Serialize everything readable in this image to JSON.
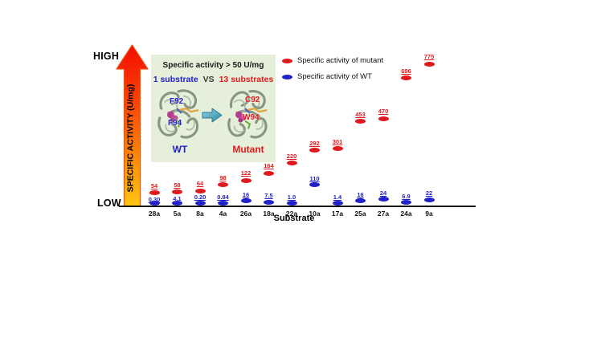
{
  "figure": {
    "y_axis": {
      "high_label": "HIGH",
      "low_label": "LOW",
      "title": "SPECIFIC ACTIVITY (U/mg)"
    },
    "x_axis": {
      "title": "Substrate"
    },
    "inset": {
      "title": "Specific activity > 50 U/mg",
      "comparison": {
        "wt_part": "1 substrate",
        "vs": "VS",
        "mutant_part": "13 substrates"
      },
      "wt": {
        "label": "WT",
        "residues": [
          "F92",
          "F94"
        ]
      },
      "mutant": {
        "label": "Mutant",
        "residues": [
          "C92",
          "W94"
        ]
      }
    },
    "legend": [
      {
        "label": "Specific activity of mutant",
        "color": "#e0191c"
      },
      {
        "label": "Specific activity of WT",
        "color": "#2121c8"
      }
    ],
    "colors": {
      "mutant": "#e0191c",
      "wt": "#2121c8",
      "inset_background": "#e6efda",
      "arrow_gradient_top": "#f40c00",
      "arrow_gradient_bottom": "#fec413",
      "axis": "#111111"
    }
  },
  "chart_data": {
    "type": "scatter",
    "title": "",
    "xlabel": "Substrate",
    "ylabel": "SPECIFIC ACTIVITY (U/mg)",
    "y_axis_style": "schematic, unlabeled, LOW to HIGH",
    "legend_position": "top-right",
    "categories": [
      "28a",
      "5a",
      "8a",
      "4a",
      "26a",
      "18a",
      "22a",
      "10a",
      "17a",
      "25a",
      "27a",
      "24a",
      "9a"
    ],
    "series": [
      {
        "name": "Specific activity of mutant",
        "color": "#e0191c",
        "values": [
          54,
          58,
          64,
          98,
          122,
          164,
          220,
          292,
          301,
          453,
          470,
          696,
          775
        ],
        "labels": [
          "54",
          "58",
          "64",
          "98",
          "122",
          "164",
          "220",
          "292",
          "301",
          "453",
          "470",
          "696",
          "775"
        ]
      },
      {
        "name": "Specific activity of WT",
        "color": "#2121c8",
        "values": [
          0.3,
          4.1,
          0.2,
          0.84,
          16,
          7.5,
          1.0,
          110,
          1.4,
          16,
          24,
          6.9,
          22
        ],
        "labels": [
          "0.30",
          "4.1",
          "0.20",
          "0.84",
          "16",
          "7.5",
          "1.0",
          "110",
          "1.4",
          "16",
          "24",
          "6.9",
          "22"
        ]
      }
    ]
  }
}
